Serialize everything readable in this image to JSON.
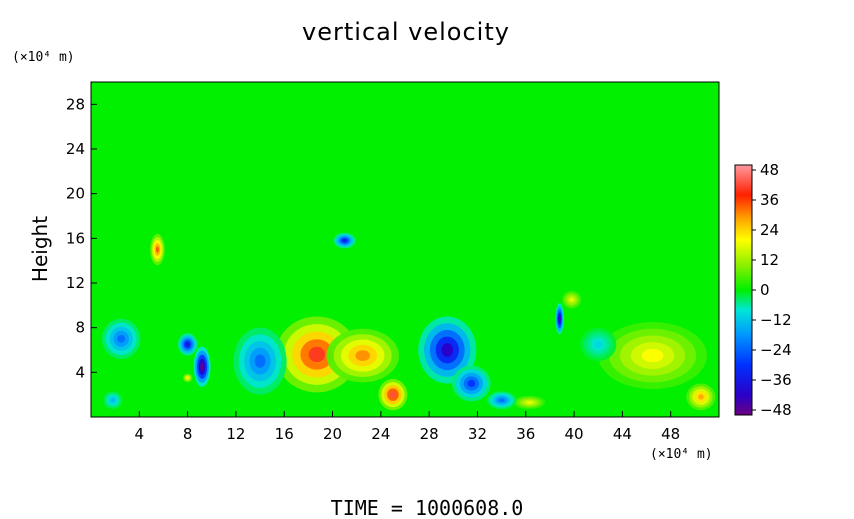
{
  "chart_data": {
    "type": "heatmap",
    "title": "vertical velocity",
    "ylabel": "Height",
    "x_unit_label": "(×10⁴ m)",
    "y_unit_label": "(×10⁴ m)",
    "footer": "TIME = 1000608.0",
    "xlim": [
      0,
      52
    ],
    "ylim": [
      0,
      30
    ],
    "x_ticks": [
      "4",
      "8",
      "12",
      "16",
      "20",
      "24",
      "28",
      "32",
      "36",
      "40",
      "44",
      "48"
    ],
    "y_ticks": [
      "4",
      "8",
      "12",
      "16",
      "20",
      "24",
      "28"
    ],
    "colorbar": {
      "range": [
        -48,
        48
      ],
      "labels": [
        "48",
        "36",
        "24",
        "12",
        "0",
        "−12",
        "−24",
        "−36",
        "−48"
      ]
    },
    "features": [
      {
        "x": 18.7,
        "y": 5.6,
        "value": 40,
        "rx": 3.4,
        "ry": 3.4
      },
      {
        "x": 22.5,
        "y": 5.5,
        "value": 30,
        "rx": 3.0,
        "ry": 2.4
      },
      {
        "x": 25.0,
        "y": 2.0,
        "value": 42,
        "rx": 1.2,
        "ry": 1.4
      },
      {
        "x": 46.5,
        "y": 5.5,
        "value": 20,
        "rx": 4.5,
        "ry": 3.0
      },
      {
        "x": 50.5,
        "y": 1.8,
        "value": 28,
        "rx": 1.2,
        "ry": 1.2
      },
      {
        "x": 5.5,
        "y": 15.0,
        "value": 34,
        "rx": 0.6,
        "ry": 1.4
      },
      {
        "x": 39.8,
        "y": 10.5,
        "value": 18,
        "rx": 0.8,
        "ry": 0.8
      },
      {
        "x": 36.3,
        "y": 1.3,
        "value": 18,
        "rx": 1.3,
        "ry": 0.6
      },
      {
        "x": 8.0,
        "y": 3.5,
        "value": 22,
        "rx": 0.4,
        "ry": 0.4
      },
      {
        "x": 9.2,
        "y": 4.5,
        "value": -48,
        "rx": 0.7,
        "ry": 1.8
      },
      {
        "x": 8.0,
        "y": 6.5,
        "value": -36,
        "rx": 0.8,
        "ry": 1.0
      },
      {
        "x": 29.5,
        "y": 6.0,
        "value": -40,
        "rx": 2.4,
        "ry": 3.0
      },
      {
        "x": 31.5,
        "y": 3.0,
        "value": -30,
        "rx": 1.6,
        "ry": 1.6
      },
      {
        "x": 34.0,
        "y": 1.5,
        "value": -24,
        "rx": 1.2,
        "ry": 0.8
      },
      {
        "x": 14.0,
        "y": 5.0,
        "value": -24,
        "rx": 2.2,
        "ry": 3.0
      },
      {
        "x": 2.5,
        "y": 7.0,
        "value": -24,
        "rx": 1.6,
        "ry": 1.8
      },
      {
        "x": 38.8,
        "y": 8.8,
        "value": -44,
        "rx": 0.35,
        "ry": 1.4
      },
      {
        "x": 21.0,
        "y": 15.8,
        "value": -34,
        "rx": 0.9,
        "ry": 0.7
      },
      {
        "x": 1.8,
        "y": 1.5,
        "value": -16,
        "rx": 0.8,
        "ry": 0.8
      },
      {
        "x": 42.0,
        "y": 6.5,
        "value": -12,
        "rx": 1.5,
        "ry": 1.5
      }
    ]
  }
}
